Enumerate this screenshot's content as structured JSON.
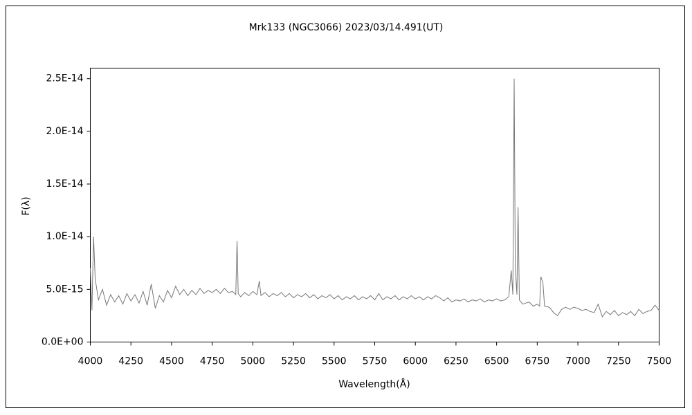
{
  "chart_data": {
    "type": "line",
    "title": "Mrk133 (NGC3066)   2023/03/14.491(UT)",
    "xlabel": "Wavelength(Å)",
    "ylabel": "F(λ)",
    "xlim": [
      4000,
      7500
    ],
    "xticks": [
      4000,
      4250,
      4500,
      4750,
      5000,
      5250,
      5500,
      5750,
      6000,
      6250,
      6500,
      6750,
      7000,
      7250,
      7500
    ],
    "ylim": [
      0,
      2.6e-14
    ],
    "yticks": [
      {
        "value": 0,
        "label": "0.0E+00"
      },
      {
        "value": 5e-15,
        "label": "5.0E-15"
      },
      {
        "value": 1e-14,
        "label": "1.0E-14"
      },
      {
        "value": 1.5e-14,
        "label": "1.5E-14"
      },
      {
        "value": 2e-14,
        "label": "2.0E-14"
      },
      {
        "value": 2.5e-14,
        "label": "2.5E-14"
      }
    ],
    "grid": false,
    "series": [
      {
        "color": "#777777",
        "x": [
          4000,
          4010,
          4020,
          4030,
          4050,
          4075,
          4100,
          4125,
          4150,
          4175,
          4200,
          4225,
          4250,
          4275,
          4300,
          4325,
          4350,
          4375,
          4400,
          4425,
          4450,
          4475,
          4500,
          4525,
          4550,
          4575,
          4600,
          4625,
          4650,
          4675,
          4700,
          4725,
          4750,
          4775,
          4800,
          4825,
          4850,
          4875,
          4895,
          4903,
          4910,
          4925,
          4950,
          4975,
          5000,
          5025,
          5040,
          5050,
          5075,
          5100,
          5125,
          5150,
          5175,
          5200,
          5225,
          5250,
          5275,
          5300,
          5325,
          5350,
          5375,
          5400,
          5425,
          5450,
          5475,
          5500,
          5525,
          5550,
          5575,
          5600,
          5625,
          5650,
          5675,
          5700,
          5725,
          5750,
          5775,
          5800,
          5825,
          5850,
          5875,
          5900,
          5925,
          5950,
          5975,
          6000,
          6025,
          6050,
          6075,
          6100,
          6125,
          6150,
          6175,
          6200,
          6225,
          6250,
          6275,
          6300,
          6325,
          6350,
          6375,
          6400,
          6425,
          6450,
          6475,
          6500,
          6525,
          6550,
          6575,
          6590,
          6600,
          6608,
          6615,
          6625,
          6632,
          6640,
          6660,
          6700,
          6725,
          6750,
          6765,
          6772,
          6785,
          6795,
          6825,
          6850,
          6875,
          6900,
          6925,
          6950,
          6975,
          7000,
          7025,
          7050,
          7075,
          7100,
          7125,
          7150,
          7175,
          7200,
          7225,
          7250,
          7275,
          7300,
          7325,
          7350,
          7375,
          7400,
          7425,
          7450,
          7475,
          7500
        ],
        "values": [
          7e-15,
          3e-15,
          1e-14,
          6e-15,
          4e-15,
          5e-15,
          3.5e-15,
          4.5e-15,
          3.8e-15,
          4.4e-15,
          3.6e-15,
          4.6e-15,
          3.9e-15,
          4.5e-15,
          3.7e-15,
          4.8e-15,
          3.5e-15,
          5.5e-15,
          3.2e-15,
          4.4e-15,
          3.8e-15,
          4.9e-15,
          4.2e-15,
          5.3e-15,
          4.5e-15,
          5e-15,
          4.4e-15,
          4.9e-15,
          4.5e-15,
          5.1e-15,
          4.6e-15,
          4.9e-15,
          4.7e-15,
          5e-15,
          4.6e-15,
          5.1e-15,
          4.7e-15,
          4.8e-15,
          4.5e-15,
          9.6e-15,
          4.6e-15,
          4.3e-15,
          4.7e-15,
          4.4e-15,
          4.8e-15,
          4.5e-15,
          5.8e-15,
          4.4e-15,
          4.7e-15,
          4.3e-15,
          4.6e-15,
          4.4e-15,
          4.7e-15,
          4.3e-15,
          4.6e-15,
          4.2e-15,
          4.5e-15,
          4.3e-15,
          4.6e-15,
          4.2e-15,
          4.5e-15,
          4.1e-15,
          4.4e-15,
          4.2e-15,
          4.5e-15,
          4.1e-15,
          4.4e-15,
          4e-15,
          4.3e-15,
          4.1e-15,
          4.4e-15,
          4e-15,
          4.3e-15,
          4.1e-15,
          4.4e-15,
          4e-15,
          4.6e-15,
          4e-15,
          4.3e-15,
          4.1e-15,
          4.4e-15,
          4e-15,
          4.3e-15,
          4.1e-15,
          4.4e-15,
          4.1e-15,
          4.3e-15,
          4e-15,
          4.3e-15,
          4.1e-15,
          4.4e-15,
          4.2e-15,
          3.9e-15,
          4.2e-15,
          3.8e-15,
          4e-15,
          3.9e-15,
          4.1e-15,
          3.8e-15,
          4e-15,
          3.9e-15,
          4.1e-15,
          3.8e-15,
          4e-15,
          3.9e-15,
          4.1e-15,
          3.9e-15,
          4e-15,
          4.3e-15,
          6.8e-15,
          4.5e-15,
          2.5e-14,
          7e-15,
          4.5e-15,
          1.28e-14,
          4e-15,
          3.6e-15,
          3.8e-15,
          3.4e-15,
          3.6e-15,
          3.4e-15,
          6.2e-15,
          5.6e-15,
          3.4e-15,
          3.3e-15,
          2.8e-15,
          2.5e-15,
          3.1e-15,
          3.3e-15,
          3.1e-15,
          3.3e-15,
          3.2e-15,
          3e-15,
          3.1e-15,
          2.9e-15,
          2.8e-15,
          3.6e-15,
          2.4e-15,
          2.9e-15,
          2.6e-15,
          3e-15,
          2.5e-15,
          2.8e-15,
          2.6e-15,
          2.9e-15,
          2.5e-15,
          3.1e-15,
          2.7e-15,
          2.9e-15,
          3e-15,
          3.5e-15,
          3e-15
        ]
      }
    ]
  }
}
